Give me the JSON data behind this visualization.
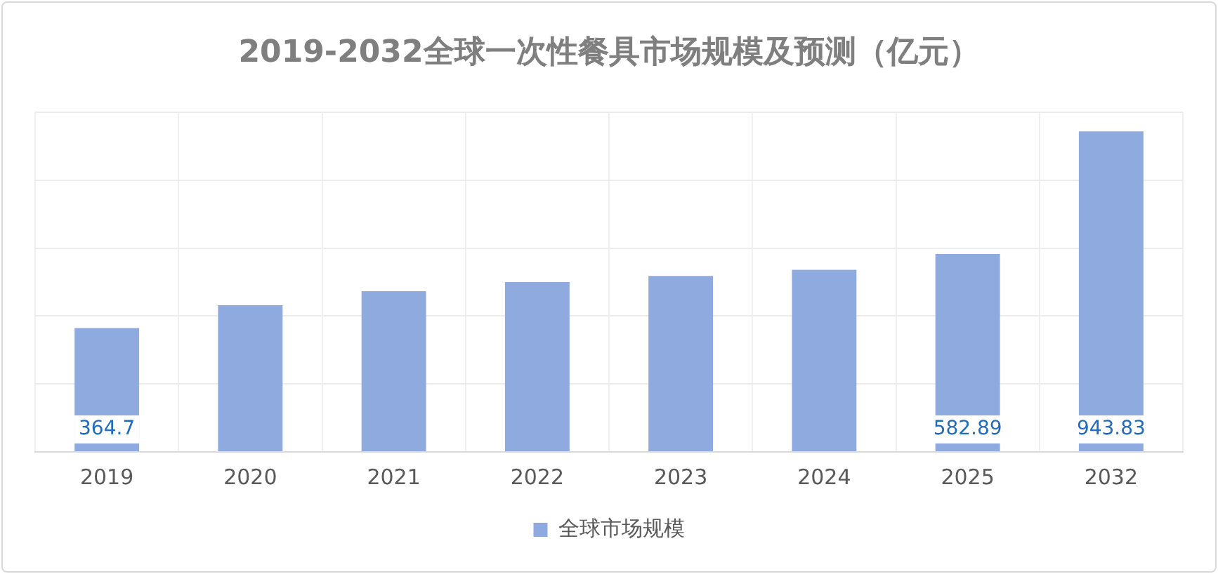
{
  "chart_data": {
    "type": "bar",
    "title": "2019-2032全球一次性餐具市场规模及预测（亿元）",
    "categories": [
      "2019",
      "2020",
      "2021",
      "2022",
      "2023",
      "2024",
      "2025",
      "2032"
    ],
    "series": [
      {
        "name": "全球市场规模",
        "color": "#8eaadf",
        "values": [
          364.7,
          432,
          473,
          500,
          518,
          536,
          582.89,
          943.83
        ],
        "value_labels": [
          "364.7",
          null,
          null,
          null,
          null,
          null,
          "582.89",
          "943.83"
        ]
      }
    ],
    "ylim": [
      0,
      1000
    ],
    "yticks": [
      {
        "value": 0,
        "label": null
      },
      {
        "value": 200,
        "label": null
      },
      {
        "value": 400,
        "label": null
      },
      {
        "value": 600,
        "label": null
      },
      {
        "value": 800,
        "label": null
      },
      {
        "value": 1000,
        "label": null
      }
    ],
    "tick_labels": "x",
    "grid": true,
    "legend": "bottom"
  }
}
